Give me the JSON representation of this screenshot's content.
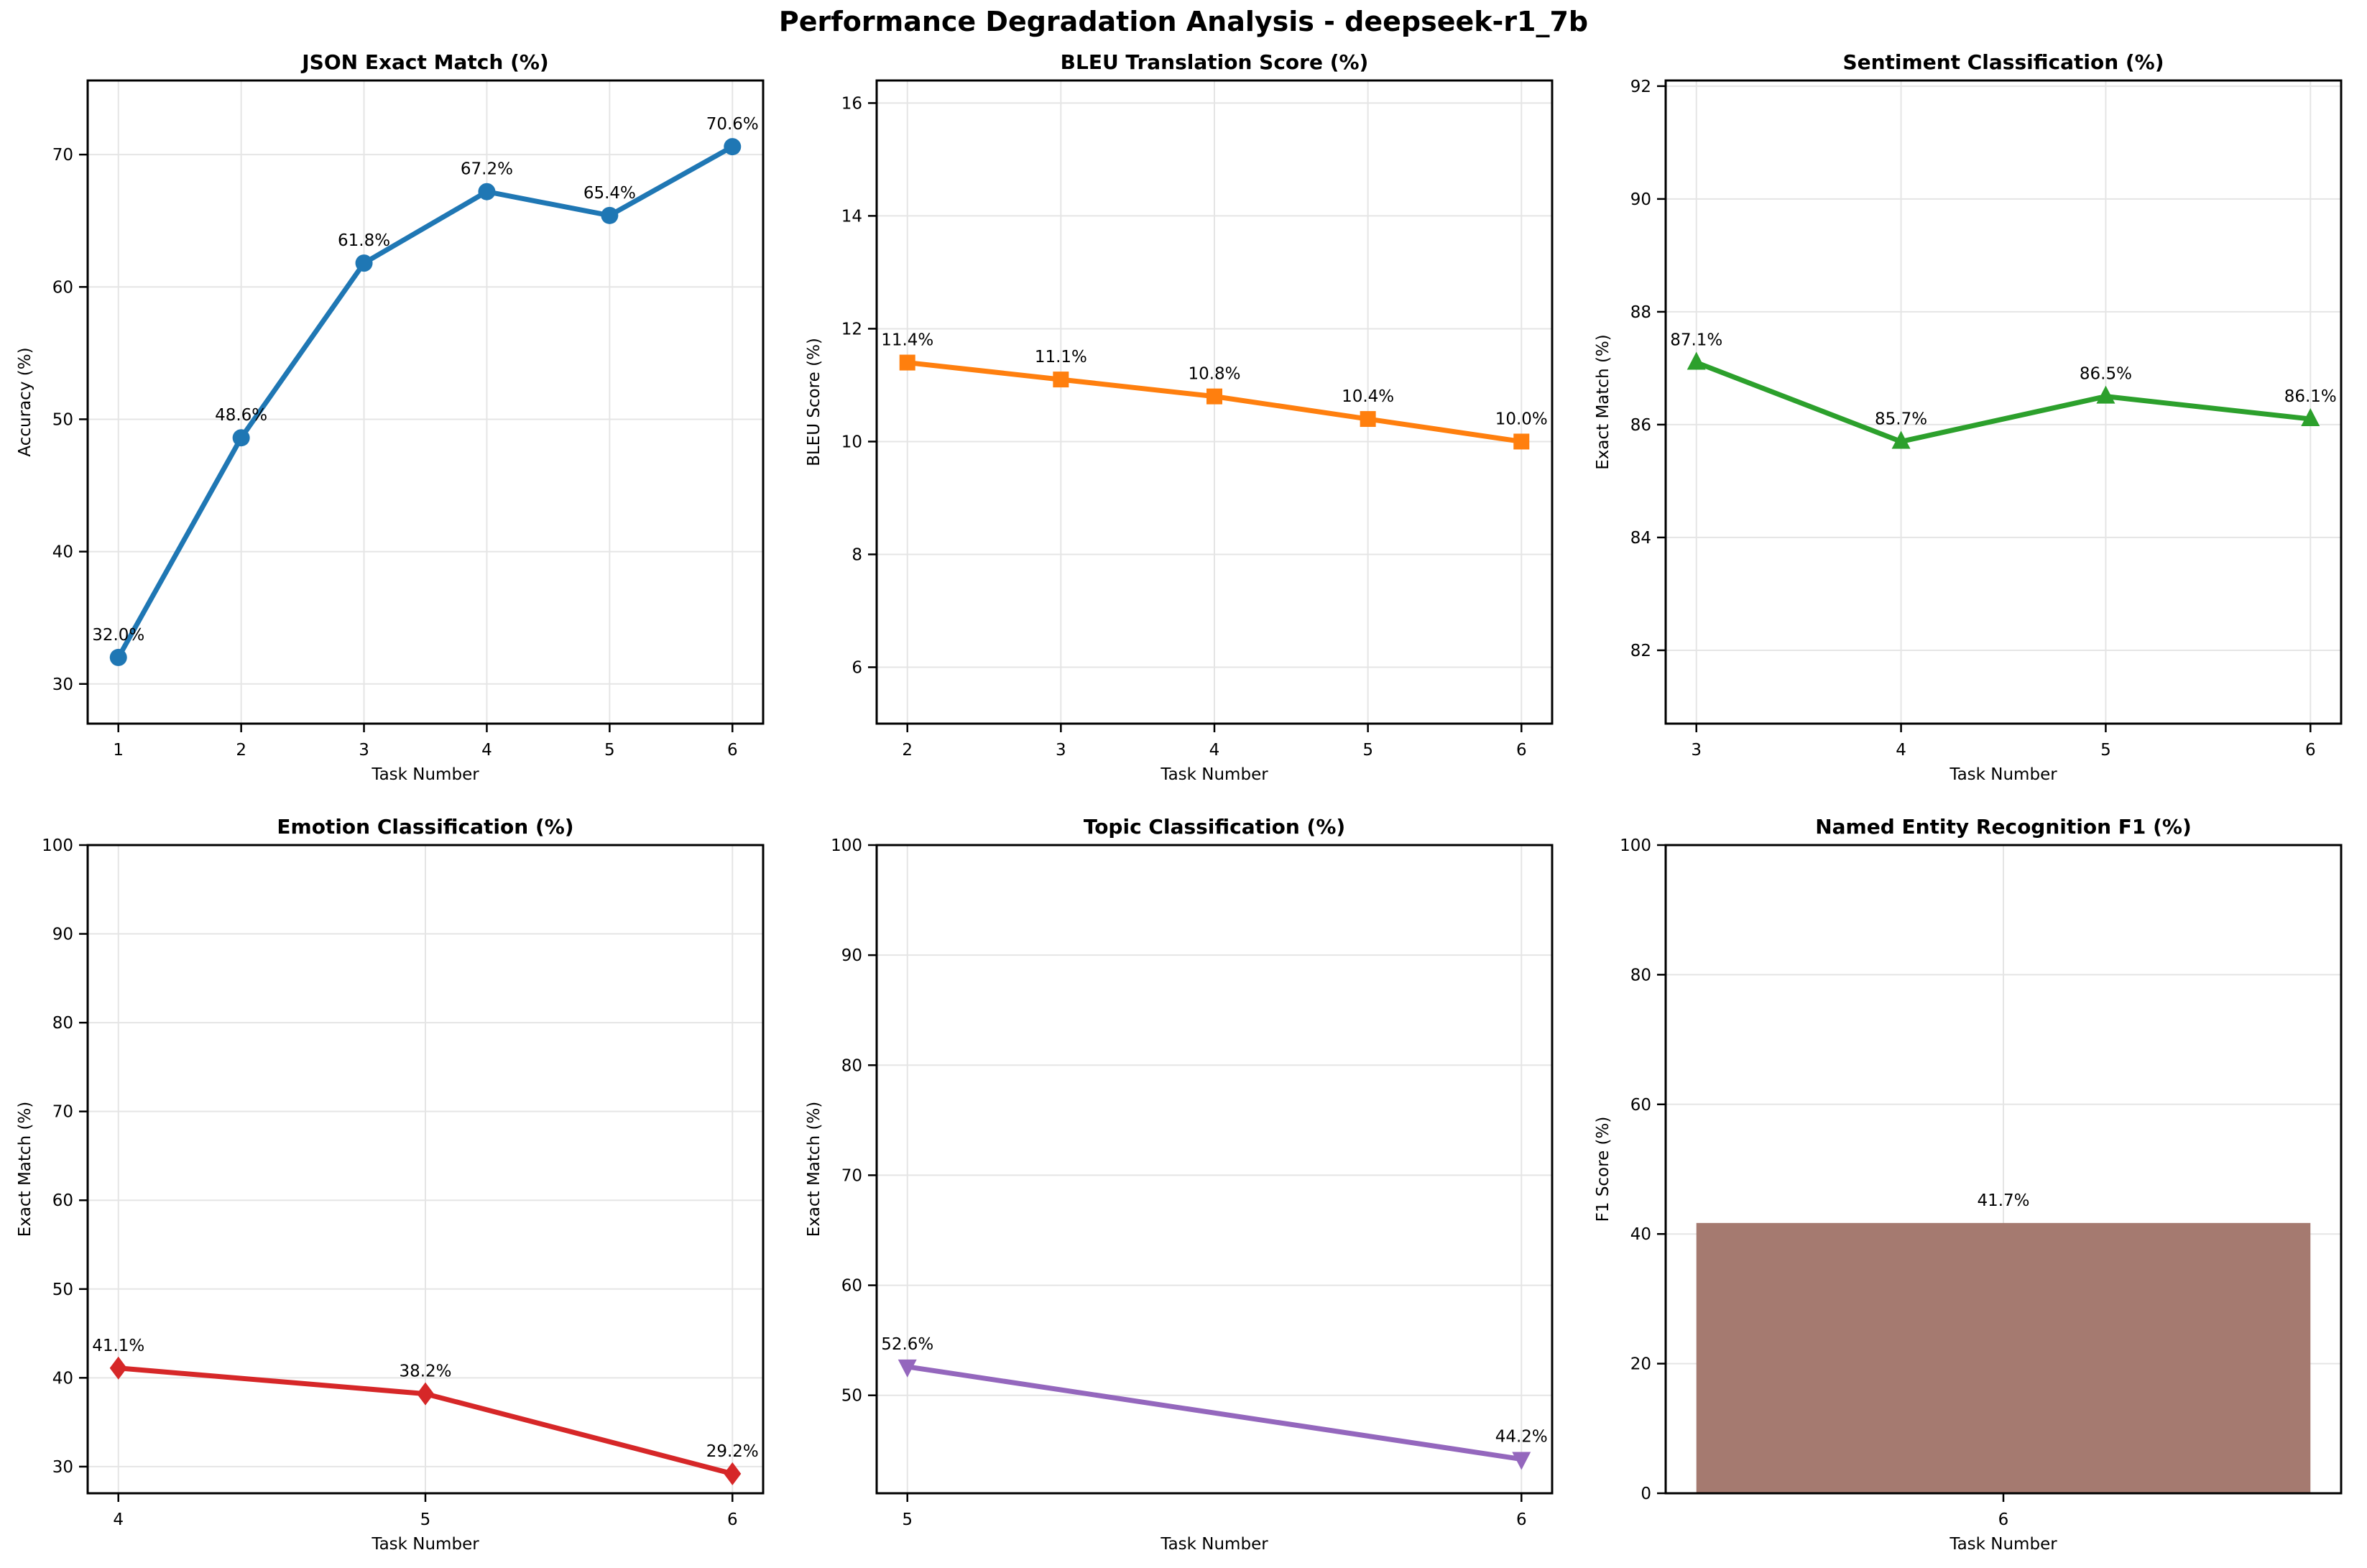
{
  "figure": {
    "title": "Performance Degradation Analysis - deepseek-r1_7b",
    "background": "#ffffff",
    "text_color": "#000000",
    "grid_color": "#e5e5e5",
    "spine_color": "#000000"
  },
  "chart_data": [
    {
      "type": "line",
      "title": "JSON Exact Match (%)",
      "xlabel": "Task Number",
      "ylabel": "Accuracy (%)",
      "x": [
        1,
        2,
        3,
        4,
        5,
        6
      ],
      "values": [
        32.0,
        48.6,
        61.8,
        67.2,
        65.4,
        70.6
      ],
      "point_labels": [
        "32.0%",
        "48.6%",
        "61.8%",
        "67.2%",
        "65.4%",
        "70.6%"
      ],
      "color": "#1f77b4",
      "marker": "circle",
      "xlim": [
        0.75,
        6.25
      ],
      "ylim": [
        27.0,
        75.6
      ],
      "xticks": [
        1,
        2,
        3,
        4,
        5,
        6
      ],
      "yticks": [
        30,
        40,
        50,
        60,
        70
      ],
      "grid": true,
      "legend": "none"
    },
    {
      "type": "line",
      "title": "BLEU Translation Score (%)",
      "xlabel": "Task Number",
      "ylabel": "BLEU Score (%)",
      "x": [
        2,
        3,
        4,
        5,
        6
      ],
      "values": [
        11.4,
        11.1,
        10.8,
        10.4,
        10.0
      ],
      "point_labels": [
        "11.4%",
        "11.1%",
        "10.8%",
        "10.4%",
        "10.0%"
      ],
      "color": "#ff7f0e",
      "marker": "square",
      "xlim": [
        1.8,
        6.2
      ],
      "ylim": [
        5.0,
        16.4
      ],
      "xticks": [
        2,
        3,
        4,
        5,
        6
      ],
      "yticks": [
        6,
        8,
        10,
        12,
        14,
        16
      ],
      "grid": true,
      "legend": "none"
    },
    {
      "type": "line",
      "title": "Sentiment Classification (%)",
      "xlabel": "Task Number",
      "ylabel": "Exact Match (%)",
      "x": [
        3,
        4,
        5,
        6
      ],
      "values": [
        87.1,
        85.7,
        86.5,
        86.1
      ],
      "point_labels": [
        "87.1%",
        "85.7%",
        "86.5%",
        "86.1%"
      ],
      "color": "#2ca02c",
      "marker": "triangle-up",
      "xlim": [
        2.85,
        6.15
      ],
      "ylim": [
        80.7,
        92.1
      ],
      "xticks": [
        3,
        4,
        5,
        6
      ],
      "yticks": [
        82,
        84,
        86,
        88,
        90,
        92
      ],
      "grid": true,
      "legend": "none"
    },
    {
      "type": "line",
      "title": "Emotion Classification (%)",
      "xlabel": "Task Number",
      "ylabel": "Exact Match (%)",
      "x": [
        4,
        5,
        6
      ],
      "values": [
        41.1,
        38.2,
        29.2
      ],
      "point_labels": [
        "41.1%",
        "38.2%",
        "29.2%"
      ],
      "color": "#d62728",
      "marker": "diamond",
      "xlim": [
        3.9,
        6.1
      ],
      "ylim": [
        27.0,
        100
      ],
      "xticks": [
        4,
        5,
        6
      ],
      "yticks": [
        30,
        40,
        50,
        60,
        70,
        80,
        90,
        100
      ],
      "grid": true,
      "legend": "none"
    },
    {
      "type": "line",
      "title": "Topic Classification (%)",
      "xlabel": "Task Number",
      "ylabel": "Exact Match (%)",
      "x": [
        5,
        6
      ],
      "values": [
        52.6,
        44.2
      ],
      "point_labels": [
        "52.6%",
        "44.2%"
      ],
      "color": "#9467bd",
      "marker": "triangle-down",
      "xlim": [
        4.95,
        6.05
      ],
      "ylim": [
        41.1,
        100
      ],
      "xticks": [
        5,
        6
      ],
      "yticks": [
        50,
        60,
        70,
        80,
        90,
        100
      ],
      "grid": true,
      "legend": "none"
    },
    {
      "type": "bar",
      "title": "Named Entity Recognition F1 (%)",
      "xlabel": "Task Number",
      "ylabel": "F1 Score (%)",
      "x": [
        6
      ],
      "values": [
        41.7
      ],
      "point_labels": [
        "41.7%"
      ],
      "color": "#a57a70",
      "bar_width": 0.8,
      "xlim": [
        5.56,
        6.44
      ],
      "ylim": [
        0,
        100
      ],
      "xticks": [
        6
      ],
      "yticks": [
        0,
        20,
        40,
        60,
        80,
        100
      ],
      "grid": true,
      "legend": "none"
    }
  ]
}
